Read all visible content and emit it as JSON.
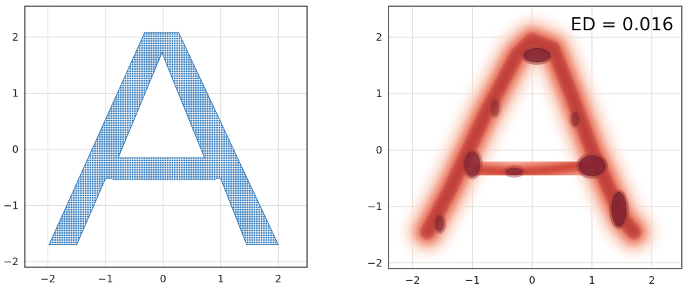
{
  "chart_data": [
    {
      "type": "scatter",
      "title": "",
      "xlabel": "",
      "ylabel": "",
      "xlim": [
        -2.4,
        2.5
      ],
      "ylim": [
        -2.1,
        2.55
      ],
      "xticks": [
        -2,
        -1,
        0,
        1,
        2
      ],
      "yticks": [
        -2,
        -1,
        0,
        1,
        2
      ],
      "xtick_labels": [
        "−2",
        "−1",
        "0",
        "1",
        "2"
      ],
      "ytick_labels": [
        "−2",
        "−1",
        "0",
        "1",
        "2"
      ],
      "grid": true,
      "series": [
        {
          "color": "#3a7fbd",
          "shape": "letter A",
          "outline": [
            [
              -1.98,
              -1.7
            ],
            [
              -1.5,
              -1.7
            ],
            [
              -1.0,
              -0.52
            ],
            [
              1.0,
              -0.52
            ],
            [
              1.45,
              -1.7
            ],
            [
              2.0,
              -1.7
            ],
            [
              0.27,
              2.08
            ],
            [
              -0.32,
              2.08
            ]
          ],
          "hole": [
            [
              -0.78,
              -0.15
            ],
            [
              0.72,
              -0.15
            ],
            [
              -0.02,
              1.72
            ]
          ],
          "crossbar_y": [
            -0.55,
            -0.15
          ],
          "sampled_points": []
        }
      ]
    },
    {
      "type": "heatmap",
      "subtype": "kde-contour",
      "title": "",
      "xlabel": "",
      "ylabel": "",
      "xlim": [
        -2.4,
        2.5
      ],
      "ylim": [
        -2.1,
        2.55
      ],
      "xticks": [
        -2,
        -1,
        0,
        1,
        2
      ],
      "yticks": [
        -2,
        -1,
        0,
        1,
        2
      ],
      "xtick_labels": [
        "−2",
        "−1",
        "0",
        "1",
        "2"
      ],
      "ytick_labels": [
        "−2",
        "−1",
        "0",
        "1",
        "2"
      ],
      "grid": true,
      "colormap": "Reds",
      "outer_color": "#fde6dd",
      "inner_color": "#c73a33",
      "peak_color": "#7a1f2e",
      "annotation": "ED = 0.016",
      "density_path": [
        [
          -1.75,
          -1.45
        ],
        [
          -1.35,
          -0.65
        ],
        [
          -0.8,
          0.6
        ],
        [
          -0.25,
          1.7
        ],
        [
          0.0,
          1.95
        ],
        [
          0.35,
          1.8
        ],
        [
          0.65,
          1.0
        ],
        [
          1.0,
          0.0
        ],
        [
          1.5,
          -1.2
        ],
        [
          1.7,
          -1.45
        ]
      ],
      "crossbar": [
        [
          -0.95,
          -0.35
        ],
        [
          -0.3,
          -0.4
        ],
        [
          0.3,
          -0.35
        ],
        [
          1.0,
          -0.25
        ]
      ],
      "peaks": [
        {
          "x": 0.08,
          "y": 1.68,
          "rx": 0.22,
          "ry": 0.12,
          "strength": 1.0
        },
        {
          "x": 1.0,
          "y": -0.28,
          "rx": 0.22,
          "ry": 0.18,
          "strength": 1.0
        },
        {
          "x": 1.45,
          "y": -1.05,
          "rx": 0.12,
          "ry": 0.3,
          "strength": 1.0
        },
        {
          "x": -1.0,
          "y": -0.25,
          "rx": 0.13,
          "ry": 0.22,
          "strength": 0.85
        },
        {
          "x": -0.3,
          "y": -0.38,
          "rx": 0.14,
          "ry": 0.06,
          "strength": 0.8
        },
        {
          "x": -1.55,
          "y": -1.3,
          "rx": 0.07,
          "ry": 0.14,
          "strength": 0.75
        },
        {
          "x": 0.72,
          "y": 0.55,
          "rx": 0.06,
          "ry": 0.12,
          "strength": 0.6
        },
        {
          "x": -0.62,
          "y": 0.75,
          "rx": 0.06,
          "ry": 0.14,
          "strength": 0.55
        }
      ]
    }
  ]
}
